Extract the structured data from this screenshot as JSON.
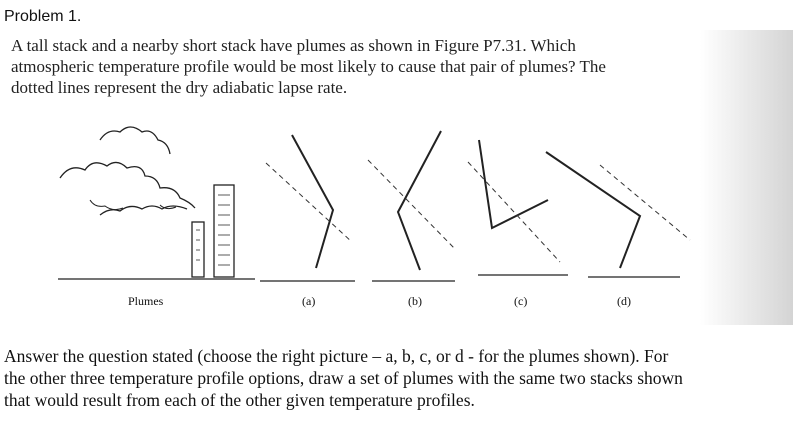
{
  "problem": {
    "heading": "Problem 1.",
    "question_lines": [
      "A tall stack and a nearby short stack have plumes as shown in Figure P7.31. Which",
      "atmospheric temperature profile would be most likely to cause that pair of plumes? The",
      "dotted lines represent the dry adiabatic lapse rate."
    ],
    "figure_labels": [
      "Plumes",
      "(a)",
      "(b)",
      "(c)",
      "(d)"
    ],
    "instruction_lines": [
      "Answer the question stated (choose the right picture – a, b, c, or d - for the plumes shown). For",
      "the other three temperature profile options, draw a set of plumes with the same two stacks shown",
      "that would result from each of the other given temperature profiles."
    ]
  }
}
